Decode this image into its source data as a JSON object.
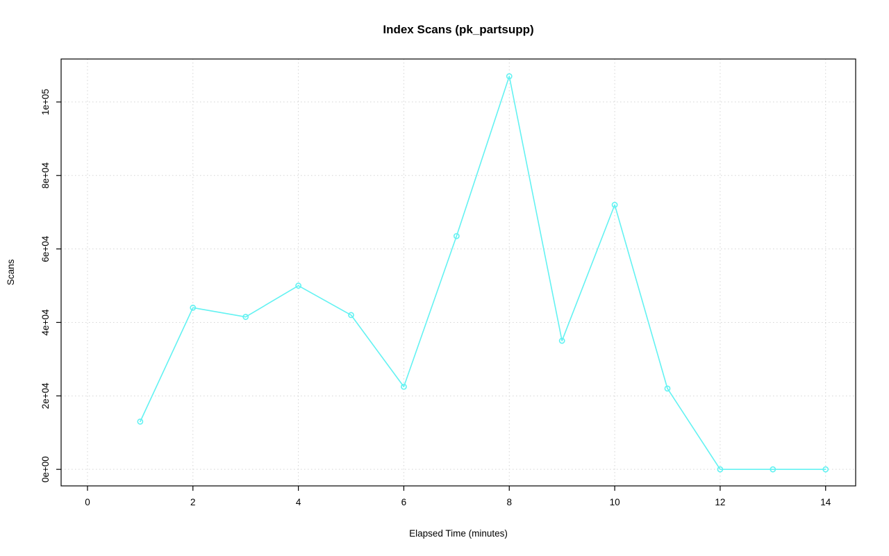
{
  "chart_data": {
    "type": "line",
    "title": "Index Scans (pk_partsupp)",
    "xlabel": "Elapsed Time (minutes)",
    "ylabel": "Scans",
    "x": [
      1,
      2,
      3,
      4,
      5,
      6,
      7,
      8,
      9,
      10,
      11,
      12,
      13,
      14
    ],
    "values": [
      13000,
      44000,
      41500,
      50000,
      42000,
      22500,
      63500,
      107000,
      35000,
      72000,
      22000,
      0,
      0,
      0
    ],
    "x_ticks": [
      0,
      2,
      4,
      6,
      8,
      10,
      12,
      14
    ],
    "x_tick_labels": [
      "0",
      "2",
      "4",
      "6",
      "8",
      "10",
      "12",
      "14"
    ],
    "y_ticks": [
      0,
      20000,
      40000,
      60000,
      80000,
      100000
    ],
    "y_tick_labels": [
      "0e+00",
      "2e+04",
      "4e+04",
      "6e+04",
      "8e+04",
      "1e+05"
    ],
    "x_range": [
      -0.5,
      14.57
    ],
    "y_range": [
      -4500,
      111700
    ],
    "grid": "dotted",
    "legend": "none",
    "colors": {
      "line": "#63F2F2",
      "marker": "#63F2F2",
      "grid": "#D4D4D4",
      "axis": "#000000",
      "text": "#000000",
      "background": "#FFFFFF"
    }
  }
}
